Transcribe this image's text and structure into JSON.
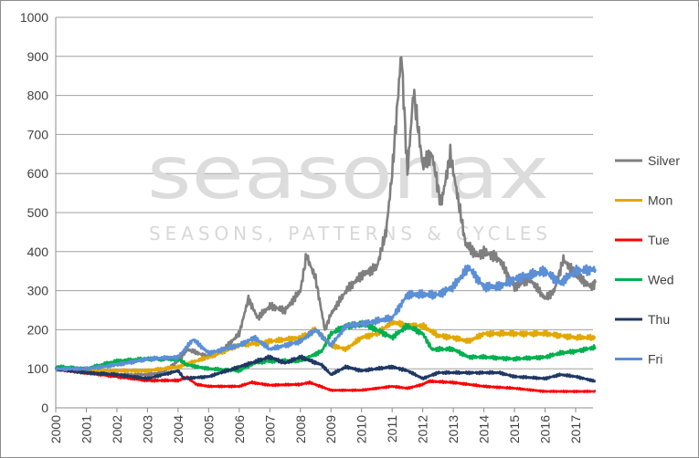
{
  "chart_data": {
    "type": "line",
    "title": "",
    "xlabel": "",
    "ylabel": "",
    "xlim": [
      2000,
      2017.65
    ],
    "ylim": [
      0,
      1000
    ],
    "y_ticks": [
      0,
      100,
      200,
      300,
      400,
      500,
      600,
      700,
      800,
      900,
      1000
    ],
    "x_ticks": [
      "2000",
      "2001",
      "2002",
      "2003",
      "2004",
      "2005",
      "2006",
      "2007",
      "2008",
      "2009",
      "2010",
      "2011",
      "2012",
      "2013",
      "2014",
      "2015",
      "2016",
      "2017"
    ],
    "grid": true,
    "legend_position": "right",
    "watermark": {
      "logo": "seasonax",
      "tagline": "SEASONS, PATTERNS & CYCLES"
    },
    "series": [
      {
        "name": "Silver",
        "color": "#7f7f7f",
        "x": [
          2000,
          2001,
          2002,
          2003,
          2003.5,
          2004,
          2004.3,
          2005,
          2005.5,
          2006,
          2006.3,
          2006.6,
          2007,
          2007.5,
          2008,
          2008.2,
          2008.5,
          2008.8,
          2009,
          2009.5,
          2010,
          2010.5,
          2010.8,
          2011,
          2011.3,
          2011.5,
          2011.7,
          2012,
          2012.3,
          2012.6,
          2012.9,
          2013.1,
          2013.4,
          2013.8,
          2014,
          2014.5,
          2015,
          2015.5,
          2016,
          2016.3,
          2016.6,
          2017,
          2017.5,
          2017.65
        ],
        "y": [
          100,
          90,
          85,
          85,
          90,
          120,
          150,
          130,
          150,
          190,
          280,
          230,
          260,
          250,
          300,
          390,
          330,
          200,
          240,
          300,
          340,
          360,
          450,
          600,
          910,
          600,
          810,
          620,
          650,
          520,
          650,
          560,
          420,
          390,
          400,
          380,
          310,
          330,
          280,
          300,
          380,
          340,
          310,
          320
        ]
      },
      {
        "name": "Mon",
        "color": "#e3a800",
        "x": [
          2000,
          2001,
          2002,
          2003,
          2004,
          2005,
          2006,
          2007,
          2008,
          2008.5,
          2009,
          2009.5,
          2010,
          2010.5,
          2011,
          2011.5,
          2012,
          2012.5,
          2013,
          2013.5,
          2014,
          2015,
          2016,
          2016.5,
          2017,
          2017.65
        ],
        "y": [
          100,
          95,
          95,
          95,
          105,
          130,
          160,
          170,
          180,
          200,
          160,
          150,
          180,
          190,
          220,
          210,
          210,
          185,
          180,
          170,
          190,
          190,
          190,
          185,
          180,
          180
        ]
      },
      {
        "name": "Tue",
        "color": "#ff0000",
        "x": [
          2000,
          2001,
          2002,
          2003,
          2004,
          2004.3,
          2004.6,
          2005,
          2006,
          2006.4,
          2007,
          2008,
          2008.3,
          2009,
          2010,
          2011,
          2011.5,
          2012,
          2012.2,
          2013,
          2014,
          2015,
          2016,
          2017,
          2017.65
        ],
        "y": [
          100,
          90,
          80,
          70,
          70,
          78,
          60,
          55,
          55,
          65,
          58,
          60,
          65,
          45,
          45,
          55,
          50,
          60,
          68,
          65,
          55,
          50,
          42,
          42,
          42
        ]
      },
      {
        "name": "Wed",
        "color": "#00b050",
        "x": [
          2000,
          2001,
          2002,
          2003,
          2004,
          2004.3,
          2005,
          2006,
          2006.5,
          2007,
          2008,
          2008.7,
          2009,
          2009.5,
          2010,
          2010.5,
          2011,
          2011.5,
          2012,
          2012.3,
          2013,
          2013.5,
          2014,
          2015,
          2016,
          2016.5,
          2017,
          2017.65
        ],
        "y": [
          105,
          100,
          120,
          125,
          125,
          110,
          100,
          95,
          115,
          120,
          120,
          145,
          190,
          210,
          215,
          200,
          180,
          210,
          190,
          150,
          150,
          130,
          130,
          125,
          130,
          140,
          145,
          155
        ]
      },
      {
        "name": "Thu",
        "color": "#1f3864",
        "x": [
          2000,
          2001,
          2002,
          2003,
          2004,
          2004.2,
          2005,
          2006,
          2007,
          2007.5,
          2008,
          2008.7,
          2009,
          2009.5,
          2010,
          2011,
          2011.5,
          2012,
          2012.5,
          2013,
          2014,
          2014.5,
          2015,
          2016,
          2016.5,
          2017,
          2017.65
        ],
        "y": [
          100,
          90,
          85,
          75,
          95,
          75,
          80,
          105,
          130,
          115,
          130,
          110,
          85,
          105,
          95,
          105,
          95,
          75,
          90,
          90,
          90,
          90,
          80,
          75,
          85,
          80,
          68
        ]
      },
      {
        "name": "Fri",
        "color": "#5b8fd6",
        "x": [
          2000,
          2001,
          2002,
          2003,
          2004,
          2004.5,
          2005,
          2006,
          2006.5,
          2007,
          2008,
          2008.5,
          2009,
          2009.5,
          2010,
          2011,
          2011.5,
          2012,
          2012.5,
          2013,
          2013.5,
          2014,
          2014.5,
          2015,
          2015.5,
          2016,
          2016.5,
          2017,
          2017.65
        ],
        "y": [
          100,
          100,
          110,
          125,
          130,
          175,
          140,
          160,
          180,
          150,
          170,
          200,
          160,
          210,
          215,
          230,
          290,
          290,
          290,
          310,
          360,
          310,
          310,
          330,
          340,
          350,
          320,
          350,
          355
        ]
      }
    ]
  }
}
